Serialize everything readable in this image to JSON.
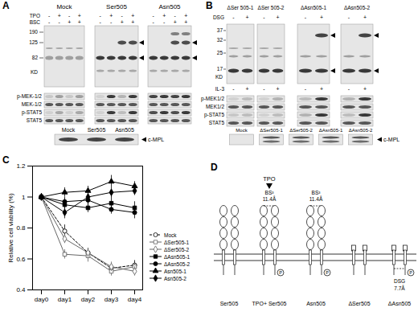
{
  "panels": {
    "A": {
      "label": "A",
      "groups": [
        "Mock",
        "Ser505",
        "Asn505"
      ],
      "treatments": [
        {
          "name": "TPO",
          "signs": [
            "-",
            "+",
            "-",
            "+"
          ]
        },
        {
          "name": "BSC",
          "signs": [
            "-",
            "-",
            "+",
            "+"
          ]
        }
      ],
      "markers": [
        190,
        125,
        82
      ],
      "marker_unit": "KD",
      "rows": [
        "p-MEK-1/2",
        "MEK-1/2",
        "p-STAT5",
        "STAT5"
      ],
      "bottom_groups": [
        "Mock",
        "Ser505",
        "Asn505"
      ],
      "bottom_label": "c-MPL"
    },
    "B": {
      "label": "B",
      "groups": [
        "ΔSer 505-1",
        "ΔSer 505-2",
        "ΔAsn505-1",
        "ΔAsn505-2"
      ],
      "treatment_top": {
        "name": "DSG",
        "signs": [
          "-",
          "+"
        ]
      },
      "markers": [
        37,
        32,
        25,
        17
      ],
      "marker_unit": "KD",
      "treatment_mid": {
        "name": "IL-3",
        "signs": [
          "-",
          "+"
        ]
      },
      "rows": [
        "p-MEK1/2",
        "MEK1/2",
        "p-STAT5",
        "STAT5"
      ],
      "bottom_groups": [
        "Mock",
        "ΔSer505-1",
        "ΔSer505-2",
        "ΔAsn505-1",
        "ΔAsn505-2"
      ],
      "bottom_label": "c-MPL"
    },
    "D": {
      "label": "D",
      "ligand": "TPO",
      "phospho_label": "P",
      "receptors": [
        {
          "label": "Ser505",
          "truncated": false,
          "ligand": false,
          "crosslink": null,
          "phosphorylated": false
        },
        {
          "label": "TPO+ Ser505",
          "truncated": false,
          "ligand": true,
          "crosslink": {
            "agent": "BS³",
            "distance": "11.4Å"
          },
          "phosphorylated": true
        },
        {
          "label": "Asn505",
          "truncated": false,
          "ligand": false,
          "crosslink": {
            "agent": "BS³",
            "distance": "11.4Å"
          },
          "phosphorylated": true
        },
        {
          "label": "ΔSer505",
          "truncated": true,
          "ligand": false,
          "crosslink": null,
          "phosphorylated": false
        },
        {
          "label": "ΔAsn505",
          "truncated": true,
          "ligand": false,
          "crosslink": {
            "agent": "DSG",
            "distance": "7.7Å"
          },
          "phosphorylated": true
        }
      ]
    }
  },
  "chart_data": {
    "panel_label": "C",
    "type": "line",
    "categories": [
      "day0",
      "day1",
      "day2",
      "day3",
      "day4"
    ],
    "y_label": "Relative cell viability (%)",
    "ylim": [
      0.4,
      1.2
    ],
    "yticks": [
      0.4,
      0.6,
      0.8,
      1,
      1.2
    ],
    "legend": "right",
    "series": [
      {
        "name": "Mock",
        "color": "#000000",
        "marker": "open-circle",
        "line_style": "dashed",
        "values": [
          1,
          0.78,
          0.64,
          0.54,
          0.56
        ],
        "errors": [
          0.02,
          0.04,
          0.03,
          0.03,
          0.03
        ]
      },
      {
        "name": "ΔSer505-1",
        "color": "#666666",
        "marker": "open-square",
        "line_style": "solid",
        "values": [
          1,
          0.63,
          0.62,
          0.52,
          0.55
        ],
        "errors": [
          0.02,
          0.03,
          0.04,
          0.03,
          0.02
        ]
      },
      {
        "name": "ΔSer505-2",
        "color": "#666666",
        "marker": "open-diamond",
        "line_style": "solid",
        "values": [
          1,
          0.73,
          0.64,
          0.55,
          0.52
        ],
        "errors": [
          0.02,
          0.03,
          0.03,
          0.03,
          0.03
        ]
      },
      {
        "name": "ΔAsn505-1",
        "color": "#000000",
        "marker": "square",
        "line_style": "solid",
        "values": [
          1,
          0.95,
          0.93,
          0.96,
          0.93
        ],
        "errors": [
          0.02,
          0.04,
          0.03,
          0.05,
          0.04
        ]
      },
      {
        "name": "ΔAsn505-2",
        "color": "#000000",
        "marker": "circle",
        "line_style": "solid",
        "values": [
          1,
          0.97,
          0.98,
          0.92,
          0.9
        ],
        "errors": [
          0.02,
          0.03,
          0.04,
          0.03,
          0.04
        ]
      },
      {
        "name": "Asn505-1",
        "color": "#000000",
        "marker": "triangle",
        "line_style": "solid",
        "values": [
          1,
          1.03,
          1.04,
          1.1,
          1.07
        ],
        "errors": [
          0.02,
          0.03,
          0.03,
          0.04,
          0.03
        ]
      },
      {
        "name": "Asn505-2",
        "color": "#000000",
        "marker": "diamond",
        "line_style": "solid",
        "values": [
          1,
          0.9,
          1,
          1.03,
          1.04
        ],
        "errors": [
          0.02,
          0.04,
          0.03,
          0.03,
          0.03
        ]
      }
    ]
  }
}
